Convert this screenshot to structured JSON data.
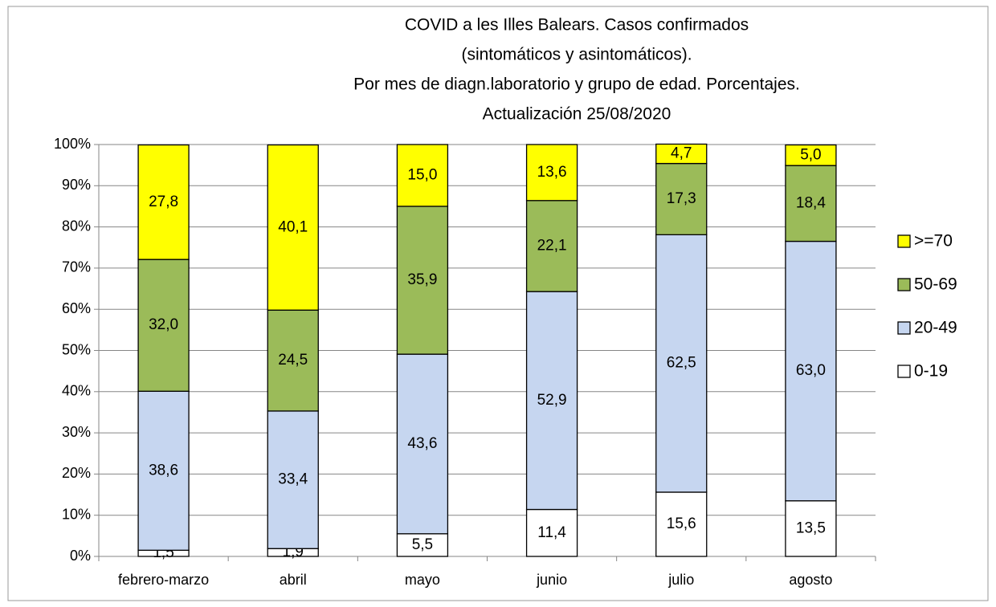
{
  "chart_data": {
    "type": "stacked_bar",
    "title": [
      "COVID a les Illes Balears.  Casos confirmados",
      "(sintomáticos y asintomáticos).",
      "Por mes de diagn.laboratorio  y grupo de edad. Porcentajes.",
      "Actualización  25/08/2020"
    ],
    "categories": [
      "febrero-marzo",
      "abril",
      "mayo",
      "junio",
      "julio",
      "agosto"
    ],
    "series": [
      {
        "name": "0-19",
        "color": "#ffffff",
        "values": [
          1.5,
          1.9,
          5.5,
          11.4,
          15.6,
          13.5
        ],
        "value_labels": [
          "1,5",
          "1,9",
          "5,5",
          "11,4",
          "15,6",
          "13,5"
        ]
      },
      {
        "name": "20-49",
        "color": "#c6d6f0",
        "values": [
          38.6,
          33.4,
          43.6,
          52.9,
          62.5,
          63.0
        ],
        "value_labels": [
          "38,6",
          "33,4",
          "43,6",
          "52,9",
          "62,5",
          "63,0"
        ]
      },
      {
        "name": "50-69",
        "color": "#9bbb59",
        "values": [
          32.0,
          24.5,
          35.9,
          22.1,
          17.3,
          18.4
        ],
        "value_labels": [
          "32,0",
          "24,5",
          "35,9",
          "22,1",
          "17,3",
          "18,4"
        ]
      },
      {
        "name": ">=70",
        "color": "#ffff00",
        "values": [
          27.8,
          40.1,
          15.0,
          13.6,
          4.7,
          5.0
        ],
        "value_labels": [
          "27,8",
          "40,1",
          "15,0",
          "13,6",
          "4,7",
          "5,0"
        ]
      }
    ],
    "ylim": [
      0,
      100
    ],
    "yticks": [
      {
        "value": 0,
        "label": "0%"
      },
      {
        "value": 10,
        "label": "10%"
      },
      {
        "value": 20,
        "label": "20%"
      },
      {
        "value": 30,
        "label": "30%"
      },
      {
        "value": 40,
        "label": "40%"
      },
      {
        "value": 50,
        "label": "50%"
      },
      {
        "value": 60,
        "label": "60%"
      },
      {
        "value": 70,
        "label": "70%"
      },
      {
        "value": 80,
        "label": "80%"
      },
      {
        "value": 90,
        "label": "90%"
      },
      {
        "value": 100,
        "label": "100%"
      }
    ],
    "grid": true,
    "legend": "right"
  }
}
